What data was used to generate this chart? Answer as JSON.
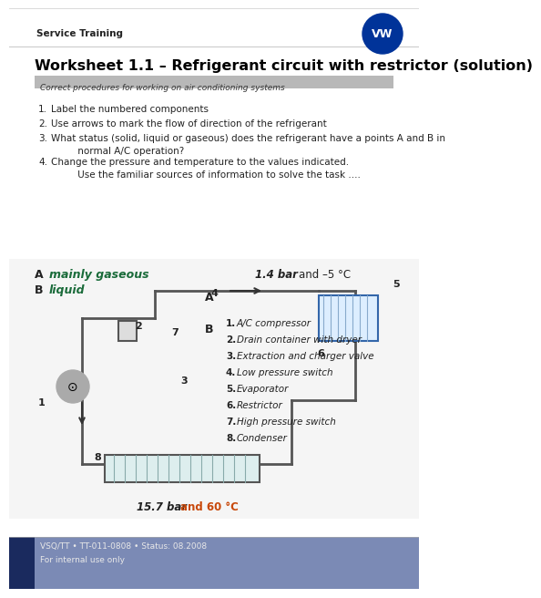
{
  "title": "Worksheet 1.1 – Refrigerant circuit with restrictor (solution)",
  "service_training": "Service Training",
  "subtitle_bar": "Correct procedures for working on air conditioning systems",
  "questions": [
    "1.   Label the numbered components",
    "2.   Use arrows to mark the flow of direction of the refrigerant",
    "3.   What status (solid, liquid or gaseous) does the refrigerant have a points A and B in\n       normal A/C operation?",
    "4.   Change the pressure and temperature to the values indicated.\n       Use the familiar sources of information to solve the task ...."
  ],
  "answer_A_label": "A",
  "answer_A_text": "mainly gaseous",
  "answer_B_label": "B",
  "answer_B_text": "liquid",
  "pressure_top": "1.4 bar",
  "temp_top": "and –5 °C",
  "pressure_bottom": "15.7 bar",
  "temp_bottom": "and 60 °C",
  "component_list": [
    "1.   A/C compressor",
    "2.   Drain container with dryer",
    "3.   Extraction and charger valve",
    "4.   Low pressure switch",
    "5.   Evaporator",
    "6.   Restrictor",
    "7.   High pressure switch",
    "8.   Condenser"
  ],
  "footer_line1": "VSQ/TT • TT-011-0808 • Status: 08.2008",
  "footer_line2": "For internal use only",
  "bg_white": "#ffffff",
  "bg_gray_bar": "#c8c8c8",
  "bg_footer": "#7b8ab5",
  "bg_footer_dark": "#1a2a5e",
  "title_color": "#000000",
  "text_color": "#333333",
  "subtitle_text_color": "#444444",
  "footer_text_color": "#dddddd",
  "answer_italic_color": "#1a6b3a",
  "component_italic_color": "#1a1a1a",
  "highlight_color": "#c8480a"
}
